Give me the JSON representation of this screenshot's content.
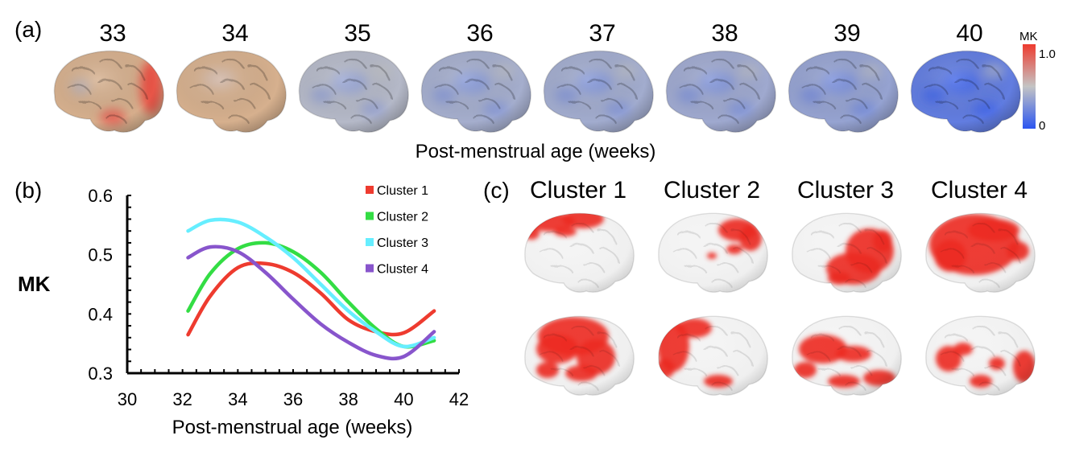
{
  "panel_a": {
    "label": "(a)",
    "weeks": [
      "33",
      "34",
      "35",
      "36",
      "37",
      "38",
      "39",
      "40"
    ],
    "week_mk_levels": [
      0.62,
      0.56,
      0.45,
      0.4,
      0.39,
      0.38,
      0.35,
      0.18
    ],
    "xlabel": "Post-menstrual age (weeks)",
    "colorbar": {
      "title": "MK",
      "max_label": "1.0",
      "min_label": "0",
      "low_color": "#2b55f0",
      "mid_color": "#c4c4c4",
      "high_color": "#ee3b2f"
    }
  },
  "panel_b": {
    "label": "(b)",
    "chart_data": {
      "type": "line",
      "title": "",
      "xlabel": "Post-menstrual age (weeks)",
      "ylabel": "MK",
      "xlim": [
        30,
        42
      ],
      "ylim": [
        0.3,
        0.6
      ],
      "xticks": [
        "30",
        "32",
        "34",
        "36",
        "38",
        "40",
        "42"
      ],
      "yticks": [
        "0.3",
        "0.4",
        "0.5",
        "0.6"
      ],
      "grid": false,
      "legend_position": "top-right",
      "series": [
        {
          "name": "Cluster 1",
          "color": "#ee3b2f",
          "x": [
            32.2,
            33,
            34,
            35,
            36,
            37,
            38,
            39,
            40,
            41.1
          ],
          "y": [
            0.365,
            0.43,
            0.478,
            0.485,
            0.47,
            0.435,
            0.39,
            0.37,
            0.368,
            0.405
          ]
        },
        {
          "name": "Cluster 2",
          "color": "#33dd44",
          "x": [
            32.2,
            33,
            34,
            35,
            36,
            37,
            38,
            39,
            40,
            41.1
          ],
          "y": [
            0.405,
            0.468,
            0.51,
            0.52,
            0.505,
            0.47,
            0.42,
            0.375,
            0.345,
            0.355
          ]
        },
        {
          "name": "Cluster 3",
          "color": "#66eeff",
          "x": [
            32.2,
            33,
            34,
            35,
            36,
            37,
            38,
            39,
            40,
            41.1
          ],
          "y": [
            0.54,
            0.558,
            0.555,
            0.53,
            0.495,
            0.45,
            0.405,
            0.37,
            0.345,
            0.36
          ]
        },
        {
          "name": "Cluster 4",
          "color": "#8855cc",
          "x": [
            32.2,
            33,
            34,
            35,
            36,
            37,
            38,
            39,
            40,
            41.1
          ],
          "y": [
            0.495,
            0.513,
            0.505,
            0.47,
            0.425,
            0.383,
            0.352,
            0.33,
            0.328,
            0.37
          ]
        }
      ]
    }
  },
  "panel_c": {
    "label": "(c)",
    "clusters": [
      "Cluster 1",
      "Cluster 2",
      "Cluster 3",
      "Cluster 4"
    ],
    "highlight_color": "#ee2a22"
  }
}
